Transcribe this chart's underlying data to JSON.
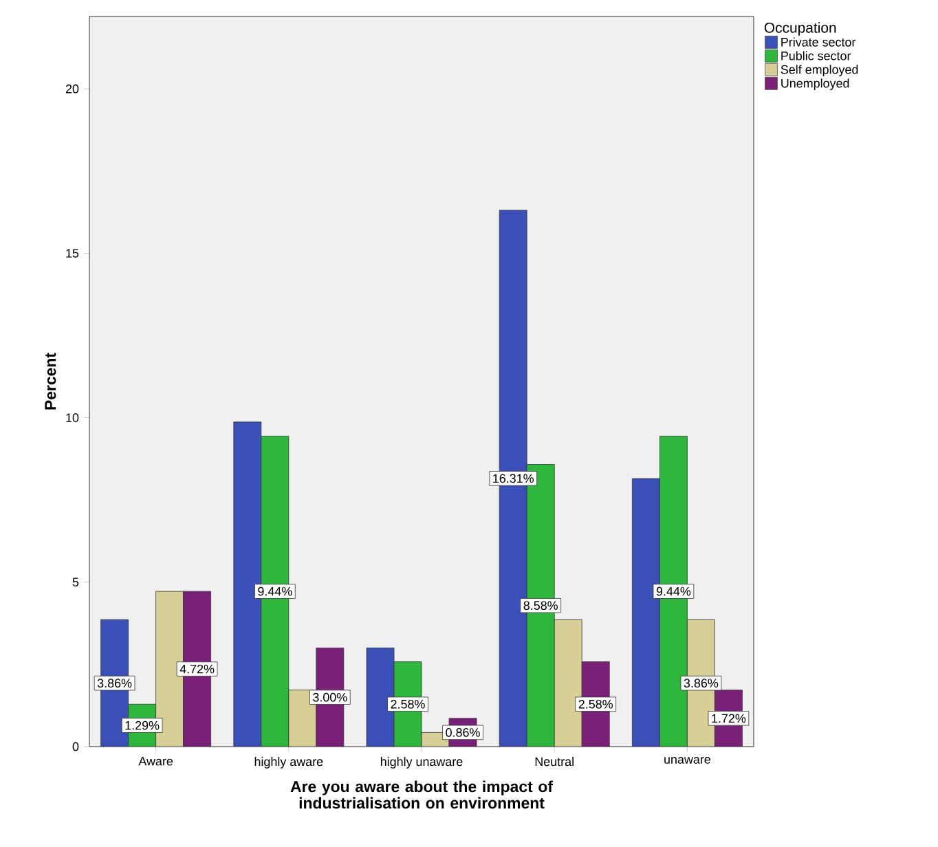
{
  "chart_data": {
    "type": "bar",
    "xlabel": "Are you aware about the impact of industrialisation on environment",
    "ylabel": "Percent",
    "legend_title": "Occupation",
    "legend": "right",
    "grid": false,
    "categories": [
      "Aware",
      "highly aware",
      "highly unaware",
      "Neutral",
      "unaware"
    ],
    "series": [
      {
        "name": "Private sector",
        "color": "#3b4fb8",
        "values": [
          3.86,
          9.87,
          3.0,
          16.31,
          8.15
        ],
        "value_labels": [
          "3.86%",
          null,
          null,
          "16.31%",
          null
        ]
      },
      {
        "name": "Public sector",
        "color": "#2db83d",
        "values": [
          1.29,
          9.44,
          2.58,
          8.58,
          9.44
        ],
        "value_labels": [
          "1.29%",
          "9.44%",
          "2.58%",
          "8.58%",
          "9.44%"
        ]
      },
      {
        "name": "Self employed",
        "color": "#d8cf96",
        "values": [
          4.72,
          1.72,
          0.43,
          3.86,
          3.86
        ],
        "value_labels": [
          null,
          null,
          null,
          null,
          "3.86%"
        ]
      },
      {
        "name": "Unemployed",
        "color": "#7b2079",
        "values": [
          4.72,
          3.0,
          0.86,
          2.58,
          1.72
        ],
        "value_labels": [
          "4.72%",
          "3.00%",
          "0.86%",
          "2.58%",
          "1.72%"
        ]
      }
    ],
    "ylim": [
      0,
      22.2
    ],
    "yticks": [
      0,
      5,
      10,
      15,
      20
    ]
  }
}
